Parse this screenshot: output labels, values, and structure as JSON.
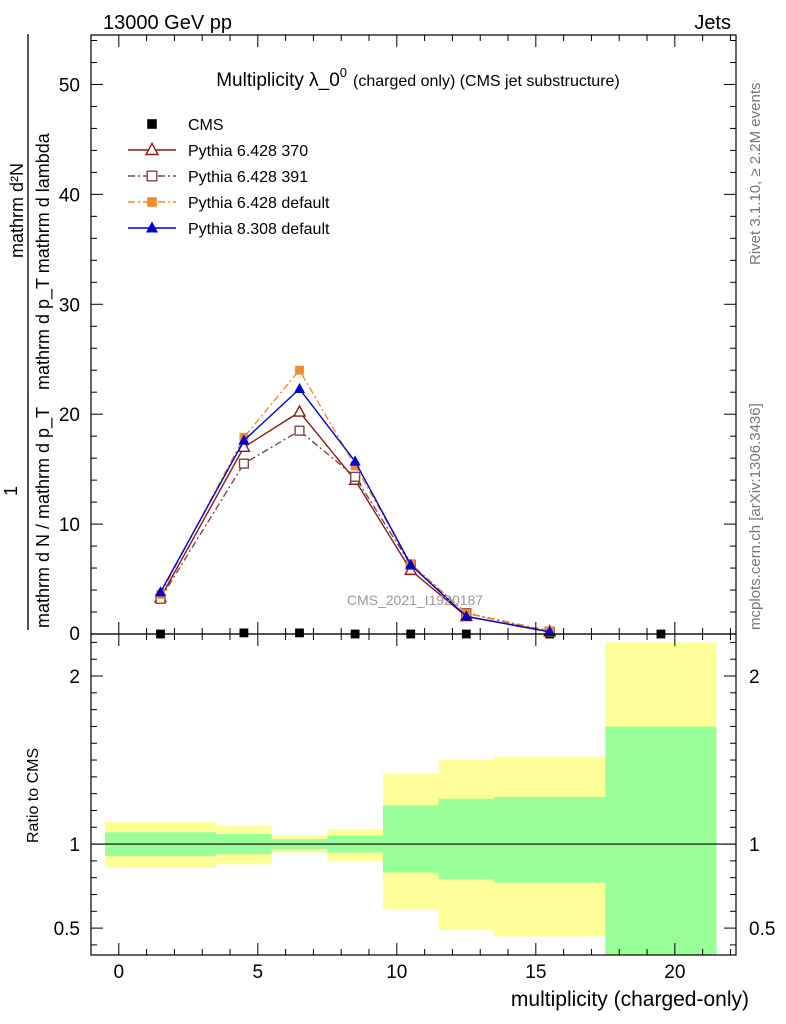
{
  "header": {
    "energy": "13000 GeV pp",
    "category": "Jets"
  },
  "side_notes": {
    "rivet": "Rivet 3.1.10, ≥ 2.2M events",
    "mcplots": "mcplots.cern.ch [arXiv:1306.3436]"
  },
  "analysis_label": "CMS_2021_I1920187",
  "chart_data": [
    {
      "type": "line",
      "title": "Multiplicity λ_0⁰ (charged only) (CMS jet substructure)",
      "title_main": "Multiplicity λ_0",
      "title_sup": "0",
      "title_rest": "(charged only) (CMS jet substructure)",
      "ylabel": "1 / mathrm d N / mathrm d p_T mathrm d p_T mathrm d^2N / mathrm d lambda",
      "ylabel_parts": {
        "numerator": "mathrm d²N",
        "denominator_top": "mathrm d p_T mathrm d lambda",
        "one": "1",
        "denominator_bottom": "mathrm d N / mathrm d p_T"
      },
      "xlabel": "multiplicity (charged-only)",
      "xlim": [
        -1,
        22.2
      ],
      "ylim": [
        0,
        54.5
      ],
      "xticks": [
        0,
        5,
        10,
        15,
        20
      ],
      "yticks": [
        10,
        20,
        30,
        40,
        50
      ],
      "ytick_zero": "0",
      "legend_position": "top-left",
      "series": [
        {
          "name": "CMS",
          "color": "#000000",
          "marker": "filled-square",
          "line": "none",
          "x": [
            1.5,
            4.5,
            6.5,
            8.5,
            10.5,
            12.5,
            15.5,
            19.5
          ],
          "y": [
            0.0,
            0.1,
            0.1,
            0.0,
            0.0,
            0.0,
            0.0,
            0.0
          ]
        },
        {
          "name": "Pythia 6.428 370",
          "color": "#8b1a1a",
          "marker": "open-triangle",
          "line": "solid",
          "x": [
            1.5,
            4.5,
            6.5,
            8.5,
            10.5,
            12.5,
            15.5
          ],
          "y": [
            3.3,
            17.0,
            20.2,
            14.0,
            5.8,
            1.6,
            0.2
          ]
        },
        {
          "name": "Pythia 6.428 391",
          "color": "#7a4a4a",
          "marker": "open-square",
          "line": "dashdot",
          "x": [
            1.5,
            4.5,
            6.5,
            8.5,
            10.5,
            12.5,
            15.5
          ],
          "y": [
            3.2,
            15.5,
            18.5,
            14.3,
            6.3,
            1.9,
            0.2
          ]
        },
        {
          "name": "Pythia 6.428 default",
          "color": "#f28a30",
          "marker": "filled-square",
          "line": "dashdot",
          "x": [
            1.5,
            4.5,
            6.5,
            8.5,
            10.5,
            12.5,
            15.5
          ],
          "y": [
            3.6,
            17.9,
            24.0,
            15.3,
            6.4,
            1.9,
            0.3
          ]
        },
        {
          "name": "Pythia 8.308 default",
          "color": "#0000cc",
          "marker": "filled-triangle",
          "line": "solid",
          "x": [
            1.5,
            4.5,
            6.5,
            8.5,
            10.5,
            12.5,
            15.5
          ],
          "y": [
            3.8,
            17.6,
            22.3,
            15.7,
            6.3,
            1.6,
            0.2
          ]
        }
      ]
    },
    {
      "type": "area",
      "ylabel": "Ratio to CMS",
      "xlabel": "multiplicity (charged-only)",
      "xlim": [
        -1,
        22.2
      ],
      "ylim": [
        0.34,
        2.25
      ],
      "yticks": [
        0.5,
        1,
        2
      ],
      "ytick_labels": [
        "0.5",
        "1",
        "2"
      ],
      "reference_line": 1,
      "bands": [
        {
          "name": "stat",
          "color": "#99ff99",
          "bins": [
            {
              "x0": -0.5,
              "x1": 3.5,
              "lo": 0.93,
              "hi": 1.07
            },
            {
              "x0": 3.5,
              "x1": 5.5,
              "lo": 0.94,
              "hi": 1.06
            },
            {
              "x0": 5.5,
              "x1": 7.5,
              "lo": 0.97,
              "hi": 1.03
            },
            {
              "x0": 7.5,
              "x1": 9.5,
              "lo": 0.95,
              "hi": 1.05
            },
            {
              "x0": 9.5,
              "x1": 11.5,
              "lo": 0.83,
              "hi": 1.23
            },
            {
              "x0": 11.5,
              "x1": 13.5,
              "lo": 0.79,
              "hi": 1.27
            },
            {
              "x0": 13.5,
              "x1": 17.5,
              "lo": 0.77,
              "hi": 1.28
            },
            {
              "x0": 17.5,
              "x1": 21.5,
              "lo": 0.34,
              "hi": 1.7
            }
          ]
        },
        {
          "name": "total",
          "color": "#ffff99",
          "bins": [
            {
              "x0": -0.5,
              "x1": 3.5,
              "lo": 0.86,
              "hi": 1.13
            },
            {
              "x0": 3.5,
              "x1": 5.5,
              "lo": 0.88,
              "hi": 1.11
            },
            {
              "x0": 5.5,
              "x1": 7.5,
              "lo": 0.95,
              "hi": 1.05
            },
            {
              "x0": 7.5,
              "x1": 9.5,
              "lo": 0.9,
              "hi": 1.09
            },
            {
              "x0": 9.5,
              "x1": 11.5,
              "lo": 0.61,
              "hi": 1.42
            },
            {
              "x0": 11.5,
              "x1": 13.5,
              "lo": 0.49,
              "hi": 1.5
            },
            {
              "x0": 13.5,
              "x1": 17.5,
              "lo": 0.45,
              "hi": 1.52
            },
            {
              "x0": 17.5,
              "x1": 21.5,
              "lo": 0.34,
              "hi": 2.2
            }
          ]
        }
      ]
    }
  ]
}
